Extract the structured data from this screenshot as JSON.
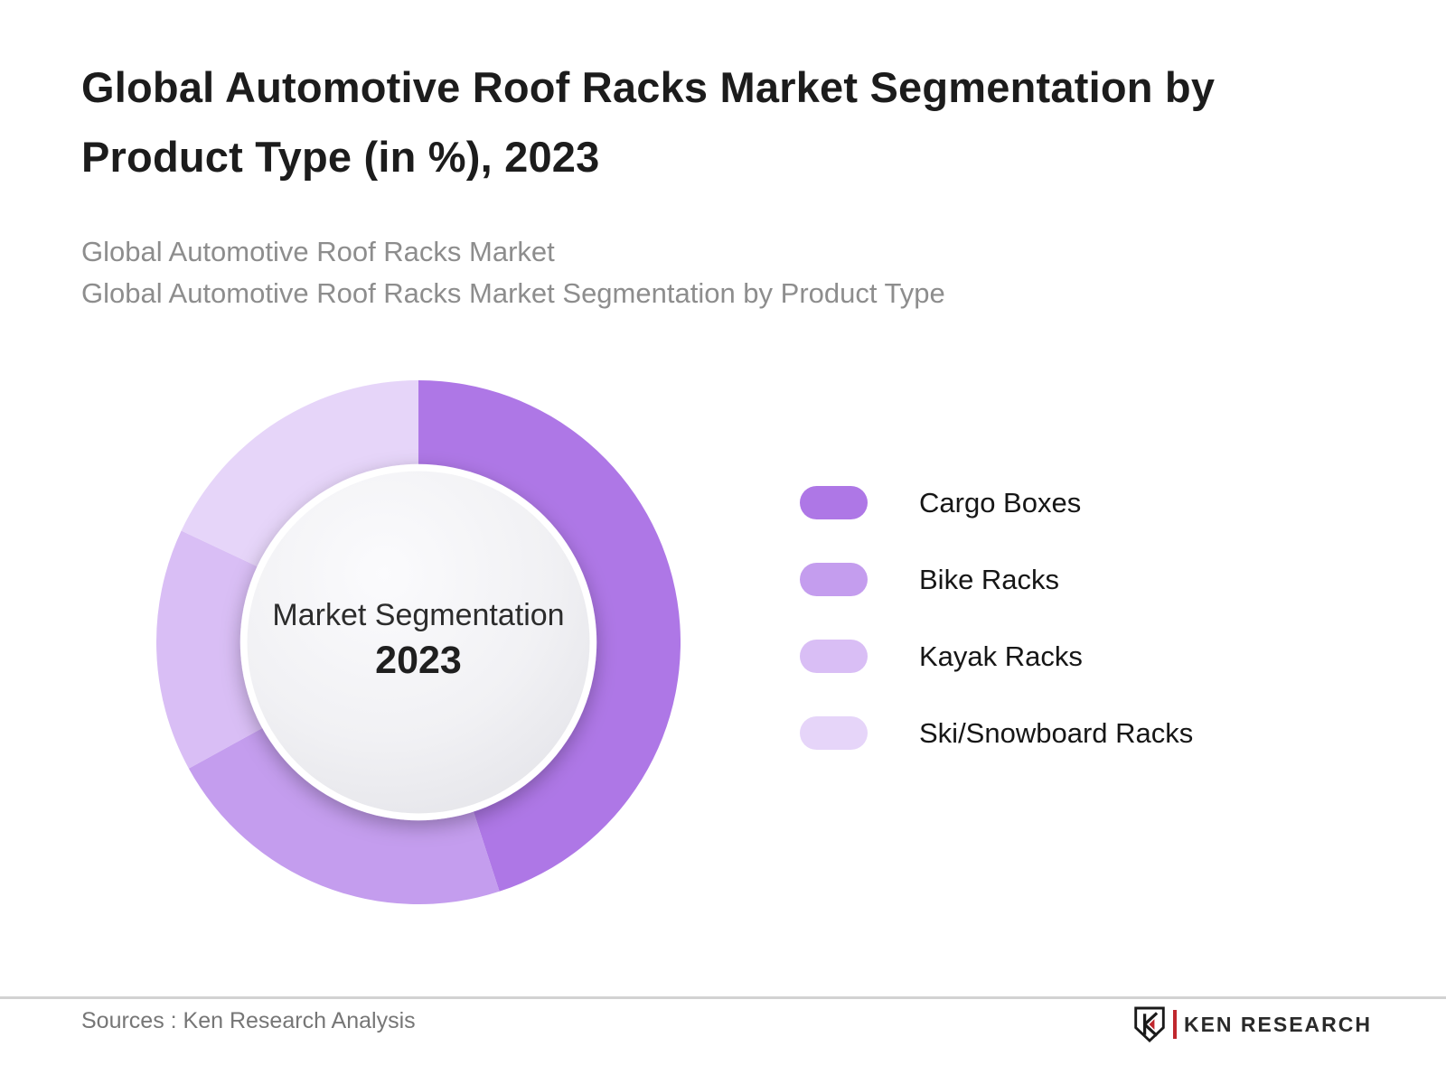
{
  "header": {
    "title": "Global Automotive Roof Racks Market Segmentation by Product Type (in %), 2023",
    "subtitle_line1": "Global Automotive Roof Racks Market",
    "subtitle_line2": "Global Automotive Roof Racks Market Segmentation by Product Type"
  },
  "chart_data": {
    "type": "pie",
    "variant": "donut",
    "title": "Global Automotive Roof Racks Market Segmentation by Product Type (in %), 2023",
    "unit": "%",
    "start_angle_deg": 0,
    "direction": "clockwise",
    "legend_position": "right",
    "center_label": {
      "line1": "Market Segmentation",
      "line2": "2023"
    },
    "segments": [
      {
        "label": "Cargo Boxes",
        "value": 45,
        "color": "#ae77e6"
      },
      {
        "label": "Bike Racks",
        "value": 22,
        "color": "#c49dee"
      },
      {
        "label": "Kayak Racks",
        "value": 15,
        "color": "#d9bef5"
      },
      {
        "label": "Ski/Snowboard Racks",
        "value": 18,
        "color": "#e6d5f9"
      }
    ]
  },
  "footer": {
    "sources": "Sources : Ken Research Analysis",
    "logo_text": "KEN RESEARCH",
    "logo_accent_color": "#c0272d"
  }
}
